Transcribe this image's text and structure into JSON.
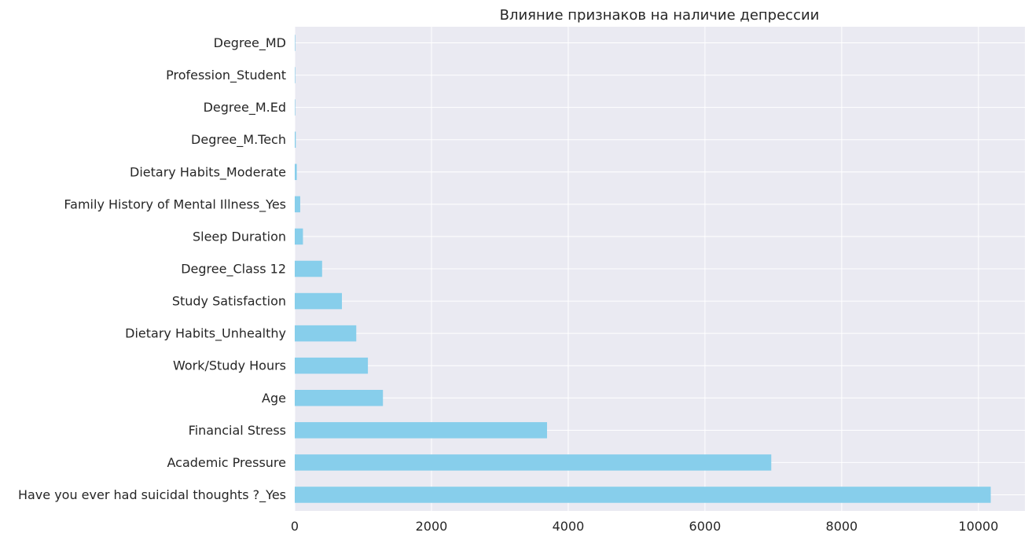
{
  "chart_data": {
    "type": "bar",
    "orientation": "horizontal",
    "title": "Влияние признаков на наличие депрессии",
    "xlabel": "",
    "ylabel": "",
    "categories": [
      "Have you ever had suicidal thoughts ?_Yes",
      "Academic Pressure",
      "Financial Stress",
      "Age",
      "Work/Study Hours",
      "Dietary Habits_Unhealthy",
      "Study Satisfaction",
      "Degree_Class 12",
      "Sleep Duration",
      "Family History of Mental Illness_Yes",
      "Dietary Habits_Moderate",
      "Degree_M.Tech",
      "Degree_M.Ed",
      "Profession_Student",
      "Degree_MD"
    ],
    "values": [
      10180,
      6970,
      3690,
      1290,
      1070,
      900,
      690,
      400,
      120,
      80,
      30,
      15,
      5,
      2,
      1
    ],
    "xlim": [
      0,
      10680
    ],
    "xticks": [
      0,
      2000,
      4000,
      6000,
      8000,
      10000
    ],
    "grid": true,
    "bar_color": "#87CEEB",
    "background_color": "#EAEAF2",
    "grid_color": "#FFFFFF"
  }
}
